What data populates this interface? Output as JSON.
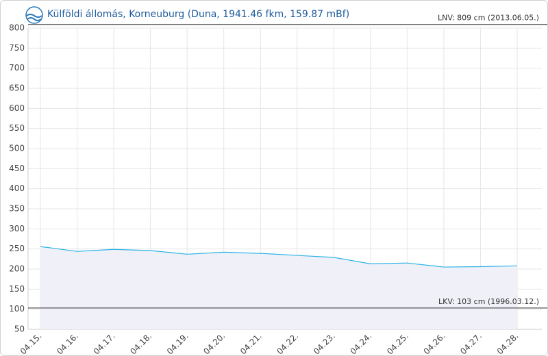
{
  "chart_data": {
    "type": "area",
    "title": "Külföldi állomás, Korneuburg (Duna, 1941.46 fkm, 159.87 mBf)",
    "categories": [
      "04.15.",
      "04.16.",
      "04.17.",
      "04.18.",
      "04.19.",
      "04.20.",
      "04.21.",
      "04.22.",
      "04.23.",
      "04.24.",
      "04.25.",
      "04.26.",
      "04.27.",
      "04.28."
    ],
    "values": [
      256,
      244,
      249,
      246,
      237,
      242,
      239,
      234,
      229,
      213,
      215,
      205,
      206,
      208
    ],
    "color": "#2bb3e6",
    "fill": "#f0f1f8",
    "ylim": [
      50,
      800
    ],
    "yticks": [
      50,
      100,
      150,
      200,
      250,
      300,
      350,
      400,
      450,
      500,
      550,
      600,
      650,
      700,
      750,
      800
    ],
    "grid": true,
    "reference_lines": [
      {
        "value": 809,
        "label": "LNV: 809 cm (2013.06.05.)"
      },
      {
        "value": 103,
        "label": "LKV: 103 cm (1996.03.12.)"
      }
    ]
  }
}
